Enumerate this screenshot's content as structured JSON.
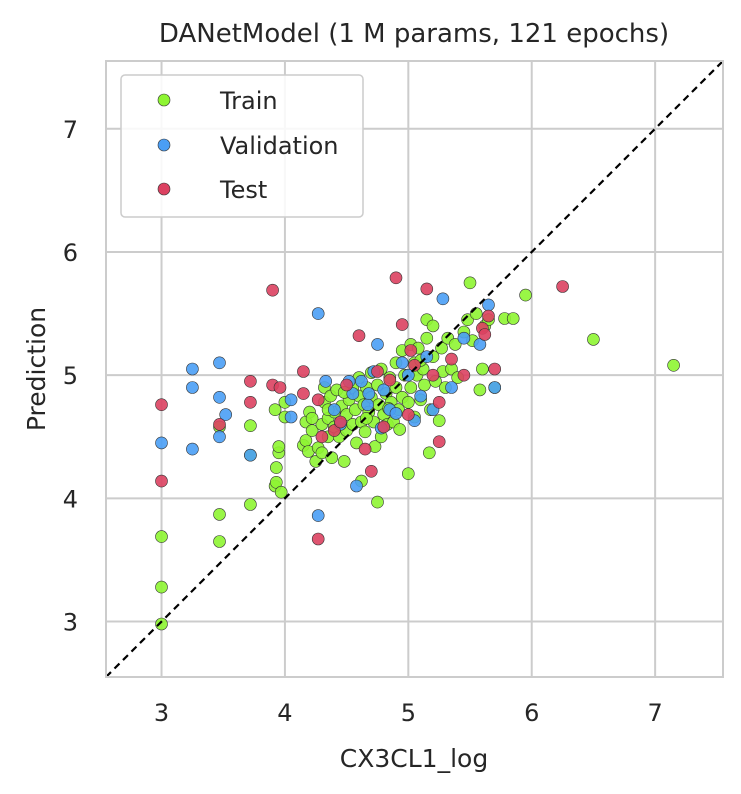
{
  "chart_data": {
    "type": "scatter",
    "title": "DANetModel (1 M params, 121 epochs)",
    "xlabel": "CX3CL1_log",
    "ylabel": "Prediction",
    "xlim": [
      2.55,
      7.55
    ],
    "ylim": [
      2.55,
      7.55
    ],
    "xticks": [
      "3",
      "4",
      "5",
      "6",
      "7"
    ],
    "yticks": [
      "3",
      "4",
      "5",
      "6",
      "7"
    ],
    "grid": true,
    "legend_position": "top-left",
    "reference_line": {
      "style": "dashed",
      "color": "#000000",
      "from": [
        2.55,
        2.55
      ],
      "to": [
        7.55,
        7.55
      ]
    },
    "series": [
      {
        "name": "Train",
        "color": "#8ef532",
        "points": [
          [
            3.0,
            2.98
          ],
          [
            3.0,
            3.28
          ],
          [
            3.0,
            3.69
          ],
          [
            3.47,
            3.65
          ],
          [
            3.47,
            3.87
          ],
          [
            3.72,
            3.95
          ],
          [
            3.92,
            4.1
          ],
          [
            3.93,
            4.13
          ],
          [
            3.93,
            4.25
          ],
          [
            3.95,
            4.37
          ],
          [
            3.95,
            4.42
          ],
          [
            3.92,
            4.72
          ],
          [
            3.72,
            4.59
          ],
          [
            3.72,
            4.35
          ],
          [
            3.47,
            4.58
          ],
          [
            3.97,
            4.05
          ],
          [
            4.0,
            4.66
          ],
          [
            4.0,
            4.78
          ],
          [
            4.15,
            4.43
          ],
          [
            4.17,
            4.47
          ],
          [
            4.17,
            4.62
          ],
          [
            4.19,
            4.38
          ],
          [
            4.2,
            4.7
          ],
          [
            4.22,
            4.55
          ],
          [
            4.25,
            4.3
          ],
          [
            4.27,
            4.41
          ],
          [
            4.3,
            4.37
          ],
          [
            4.3,
            4.6
          ],
          [
            4.32,
            4.78
          ],
          [
            4.32,
            4.9
          ],
          [
            4.35,
            4.5
          ],
          [
            4.35,
            4.65
          ],
          [
            4.37,
            4.83
          ],
          [
            4.38,
            4.33
          ],
          [
            4.4,
            4.58
          ],
          [
            4.4,
            4.7
          ],
          [
            4.42,
            4.88
          ],
          [
            4.44,
            4.5
          ],
          [
            4.45,
            4.62
          ],
          [
            4.46,
            4.75
          ],
          [
            4.48,
            4.3
          ],
          [
            4.5,
            4.55
          ],
          [
            4.5,
            4.68
          ],
          [
            4.52,
            4.8
          ],
          [
            4.55,
            4.6
          ],
          [
            4.55,
            4.9
          ],
          [
            4.57,
            4.72
          ],
          [
            4.58,
            4.45
          ],
          [
            4.6,
            4.83
          ],
          [
            4.6,
            4.98
          ],
          [
            4.62,
            4.14
          ],
          [
            4.62,
            4.62
          ],
          [
            4.64,
            4.76
          ],
          [
            4.65,
            4.54
          ],
          [
            4.66,
            4.9
          ],
          [
            4.68,
            4.7
          ],
          [
            4.7,
            4.82
          ],
          [
            4.7,
            5.02
          ],
          [
            4.72,
            4.62
          ],
          [
            4.73,
            4.42
          ],
          [
            4.75,
            3.97
          ],
          [
            4.75,
            4.92
          ],
          [
            4.76,
            4.76
          ],
          [
            4.78,
            4.5
          ],
          [
            4.78,
            5.05
          ],
          [
            4.8,
            4.68
          ],
          [
            4.82,
            4.85
          ],
          [
            4.83,
            4.6
          ],
          [
            4.85,
            4.98
          ],
          [
            4.86,
            4.78
          ],
          [
            4.88,
            4.62
          ],
          [
            4.9,
            4.9
          ],
          [
            4.9,
            5.1
          ],
          [
            4.92,
            4.72
          ],
          [
            4.93,
            4.56
          ],
          [
            4.95,
            4.82
          ],
          [
            4.95,
            5.2
          ],
          [
            4.97,
            5.0
          ],
          [
            5.0,
            4.78
          ],
          [
            5.0,
            4.2
          ],
          [
            5.02,
            5.25
          ],
          [
            5.02,
            4.9
          ],
          [
            5.05,
            5.1
          ],
          [
            5.05,
            4.66
          ],
          [
            5.07,
            5.0
          ],
          [
            5.08,
            5.22
          ],
          [
            5.1,
            4.8
          ],
          [
            5.12,
            5.05
          ],
          [
            5.13,
            4.92
          ],
          [
            5.15,
            5.3
          ],
          [
            5.15,
            5.45
          ],
          [
            5.17,
            4.37
          ],
          [
            5.18,
            4.72
          ],
          [
            5.2,
            5.15
          ],
          [
            5.2,
            5.4
          ],
          [
            5.22,
            4.95
          ],
          [
            5.25,
            4.63
          ],
          [
            5.27,
            5.22
          ],
          [
            5.28,
            5.03
          ],
          [
            5.3,
            4.9
          ],
          [
            5.32,
            5.3
          ],
          [
            5.35,
            5.05
          ],
          [
            5.38,
            5.25
          ],
          [
            5.4,
            4.98
          ],
          [
            5.45,
            5.35
          ],
          [
            5.48,
            5.45
          ],
          [
            5.5,
            5.75
          ],
          [
            5.52,
            5.28
          ],
          [
            5.55,
            5.5
          ],
          [
            5.58,
            4.88
          ],
          [
            5.6,
            5.05
          ],
          [
            5.62,
            5.4
          ],
          [
            5.65,
            5.45
          ],
          [
            5.7,
            4.9
          ],
          [
            5.78,
            5.46
          ],
          [
            5.85,
            5.46
          ],
          [
            5.95,
            5.65
          ],
          [
            6.5,
            5.29
          ],
          [
            7.15,
            5.08
          ],
          [
            4.48,
            4.86
          ],
          [
            4.35,
            4.72
          ],
          [
            4.22,
            4.65
          ],
          [
            5.1,
            5.12
          ],
          [
            4.66,
            4.65
          ],
          [
            4.84,
            4.73
          ]
        ]
      },
      {
        "name": "Validation",
        "color": "#4a9ef5",
        "points": [
          [
            3.0,
            4.45
          ],
          [
            3.25,
            5.05
          ],
          [
            3.25,
            4.9
          ],
          [
            3.25,
            4.4
          ],
          [
            3.47,
            5.1
          ],
          [
            3.47,
            4.82
          ],
          [
            3.47,
            4.5
          ],
          [
            3.52,
            4.68
          ],
          [
            3.72,
            4.35
          ],
          [
            4.05,
            4.8
          ],
          [
            4.05,
            4.66
          ],
          [
            4.27,
            5.5
          ],
          [
            4.27,
            3.86
          ],
          [
            4.33,
            4.95
          ],
          [
            4.4,
            4.72
          ],
          [
            4.45,
            4.6
          ],
          [
            4.55,
            4.85
          ],
          [
            4.58,
            4.1
          ],
          [
            4.62,
            4.95
          ],
          [
            4.67,
            4.76
          ],
          [
            4.72,
            5.03
          ],
          [
            4.75,
            5.25
          ],
          [
            4.78,
            4.57
          ],
          [
            4.8,
            4.88
          ],
          [
            4.85,
            4.72
          ],
          [
            4.9,
            4.69
          ],
          [
            4.95,
            5.1
          ],
          [
            5.0,
            5.0
          ],
          [
            5.05,
            4.63
          ],
          [
            5.1,
            4.83
          ],
          [
            5.15,
            5.15
          ],
          [
            5.2,
            4.72
          ],
          [
            5.28,
            5.62
          ],
          [
            5.35,
            4.9
          ],
          [
            5.45,
            5.3
          ],
          [
            5.58,
            5.25
          ],
          [
            5.65,
            5.57
          ],
          [
            5.7,
            4.9
          ],
          [
            4.52,
            4.95
          ],
          [
            4.68,
            4.85
          ]
        ]
      },
      {
        "name": "Test",
        "color": "#dc4161",
        "points": [
          [
            3.0,
            4.76
          ],
          [
            3.0,
            4.14
          ],
          [
            3.47,
            4.6
          ],
          [
            3.72,
            4.95
          ],
          [
            3.72,
            4.78
          ],
          [
            3.9,
            5.69
          ],
          [
            3.9,
            4.92
          ],
          [
            3.96,
            4.9
          ],
          [
            4.15,
            5.03
          ],
          [
            4.15,
            4.85
          ],
          [
            4.27,
            4.8
          ],
          [
            4.27,
            3.67
          ],
          [
            4.3,
            4.5
          ],
          [
            4.4,
            4.55
          ],
          [
            4.5,
            4.92
          ],
          [
            4.6,
            5.32
          ],
          [
            4.65,
            4.4
          ],
          [
            4.7,
            4.22
          ],
          [
            4.75,
            5.03
          ],
          [
            4.85,
            4.96
          ],
          [
            4.9,
            5.79
          ],
          [
            4.95,
            5.41
          ],
          [
            5.0,
            4.68
          ],
          [
            5.02,
            5.2
          ],
          [
            5.05,
            5.08
          ],
          [
            5.15,
            5.7
          ],
          [
            5.2,
            5.0
          ],
          [
            5.25,
            4.78
          ],
          [
            5.25,
            4.46
          ],
          [
            5.35,
            5.13
          ],
          [
            5.45,
            5.0
          ],
          [
            5.6,
            5.38
          ],
          [
            5.62,
            5.33
          ],
          [
            5.65,
            5.48
          ],
          [
            5.7,
            5.05
          ],
          [
            6.25,
            5.72
          ],
          [
            4.45,
            4.62
          ],
          [
            4.8,
            4.58
          ]
        ]
      }
    ]
  }
}
